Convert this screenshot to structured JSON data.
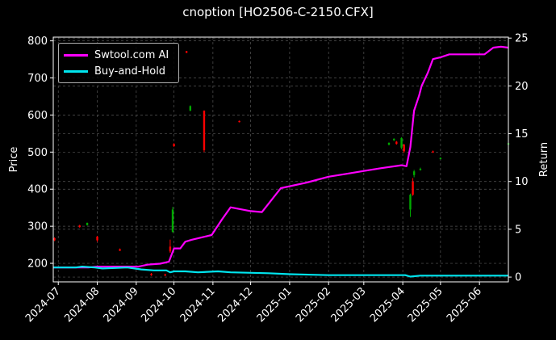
{
  "chart_data": {
    "type": "line",
    "title": "cnoption [HO2506-C-2150.CFX]",
    "ylabel": "Price",
    "y2label": "Return",
    "ylim": [
      150,
      810
    ],
    "y2lim": [
      -0.5,
      25.1
    ],
    "xlim": [
      "2024-06-27",
      "2025-06-24"
    ],
    "yticks": [
      200,
      300,
      400,
      500,
      600,
      700,
      800
    ],
    "y2ticks": [
      0,
      5,
      10,
      15,
      20,
      25
    ],
    "xticks": [
      "2024-07",
      "2024-08",
      "2024-09",
      "2024-10",
      "2024-11",
      "2024-12",
      "2025-01",
      "2025-02",
      "2025-03",
      "2025-04",
      "2025-05",
      "2025-06"
    ],
    "grid": true,
    "legend_position": "upper-left",
    "colors": {
      "up": "#00aa00",
      "down": "#ff0000",
      "ai": "#ff00ff",
      "bh": "#00e5ee",
      "grid": "#555555"
    },
    "series": [
      {
        "name": "Swtool.com AI",
        "axis": "right",
        "points": [
          [
            "2024-06-27",
            1.0
          ],
          [
            "2024-07-15",
            1.0
          ],
          [
            "2024-07-25",
            1.0
          ],
          [
            "2024-08-01",
            1.1
          ],
          [
            "2024-08-15",
            1.1
          ],
          [
            "2024-09-03",
            1.1
          ],
          [
            "2024-09-10",
            1.3
          ],
          [
            "2024-09-20",
            1.4
          ],
          [
            "2024-09-27",
            1.6
          ],
          [
            "2024-10-01",
            3.0
          ],
          [
            "2024-10-06",
            3.0
          ],
          [
            "2024-10-10",
            3.7
          ],
          [
            "2024-10-15",
            3.9
          ],
          [
            "2024-10-31",
            4.4
          ],
          [
            "2024-11-08",
            6.0
          ],
          [
            "2024-11-15",
            7.3
          ],
          [
            "2024-12-01",
            6.9
          ],
          [
            "2024-12-10",
            6.8
          ],
          [
            "2024-12-25",
            9.3
          ],
          [
            "2025-01-15",
            9.9
          ],
          [
            "2025-02-01",
            10.5
          ],
          [
            "2025-02-15",
            10.8
          ],
          [
            "2025-03-01",
            11.1
          ],
          [
            "2025-03-15",
            11.4
          ],
          [
            "2025-03-31",
            11.7
          ],
          [
            "2025-04-04",
            11.6
          ],
          [
            "2025-04-07",
            13.6
          ],
          [
            "2025-04-10",
            17.4
          ],
          [
            "2025-04-14",
            19.0
          ],
          [
            "2025-04-16",
            20.0
          ],
          [
            "2025-04-21",
            21.4
          ],
          [
            "2025-04-25",
            22.8
          ],
          [
            "2025-05-01",
            23.0
          ],
          [
            "2025-05-08",
            23.3
          ],
          [
            "2025-06-05",
            23.3
          ],
          [
            "2025-06-12",
            24.0
          ],
          [
            "2025-06-18",
            24.1
          ],
          [
            "2025-06-24",
            24.0
          ]
        ]
      },
      {
        "name": "Buy-and-Hold",
        "axis": "right",
        "points": [
          [
            "2024-06-27",
            1.0
          ],
          [
            "2024-07-15",
            1.0
          ],
          [
            "2024-07-20",
            1.1
          ],
          [
            "2024-07-30",
            1.0
          ],
          [
            "2024-08-05",
            0.9
          ],
          [
            "2024-08-25",
            1.0
          ],
          [
            "2024-09-05",
            0.8
          ],
          [
            "2024-09-15",
            0.7
          ],
          [
            "2024-09-25",
            0.7
          ],
          [
            "2024-09-28",
            0.5
          ],
          [
            "2024-10-01",
            0.6
          ],
          [
            "2024-10-10",
            0.6
          ],
          [
            "2024-10-20",
            0.5
          ],
          [
            "2024-11-05",
            0.6
          ],
          [
            "2024-11-15",
            0.5
          ],
          [
            "2024-12-15",
            0.4
          ],
          [
            "2025-01-01",
            0.3
          ],
          [
            "2025-02-01",
            0.2
          ],
          [
            "2025-03-01",
            0.2
          ],
          [
            "2025-04-03",
            0.2
          ],
          [
            "2025-04-07",
            0.05
          ],
          [
            "2025-04-15",
            0.15
          ],
          [
            "2025-06-24",
            0.15
          ]
        ]
      }
    ],
    "candles": [
      {
        "date": "2024-06-28",
        "open": 268,
        "close": 262,
        "high": 270,
        "low": 260
      },
      {
        "date": "2024-07-18",
        "open": 302,
        "close": 298,
        "high": 304,
        "low": 296
      },
      {
        "date": "2024-07-24",
        "open": 303,
        "close": 309,
        "high": 310,
        "low": 302
      },
      {
        "date": "2024-08-01",
        "open": 272,
        "close": 262,
        "high": 274,
        "low": 258
      },
      {
        "date": "2024-08-19",
        "open": 238,
        "close": 234,
        "high": 240,
        "low": 233
      },
      {
        "date": "2024-09-13",
        "open": 172,
        "close": 168,
        "high": 174,
        "low": 166
      },
      {
        "date": "2024-09-24",
        "open": 170,
        "close": 167,
        "high": 172,
        "low": 166
      },
      {
        "date": "2024-09-28",
        "open": 245,
        "close": 232,
        "high": 264,
        "low": 228
      },
      {
        "date": "2024-09-30",
        "open": 285,
        "close": 345,
        "high": 352,
        "low": 282
      },
      {
        "date": "2024-10-01",
        "open": 522,
        "close": 516,
        "high": 524,
        "low": 514
      },
      {
        "date": "2024-10-11",
        "open": 772,
        "close": 768,
        "high": 773,
        "low": 767
      },
      {
        "date": "2024-10-14",
        "open": 612,
        "close": 624,
        "high": 626,
        "low": 610
      },
      {
        "date": "2024-10-25",
        "open": 612,
        "close": 505,
        "high": 612,
        "low": 500
      },
      {
        "date": "2024-11-22",
        "open": 584,
        "close": 581,
        "high": 585,
        "low": 580
      },
      {
        "date": "2025-03-21",
        "open": 520,
        "close": 525,
        "high": 526,
        "low": 518
      },
      {
        "date": "2025-03-25",
        "open": 532,
        "close": 536,
        "high": 537,
        "low": 530
      },
      {
        "date": "2025-03-27",
        "open": 528,
        "close": 522,
        "high": 530,
        "low": 520
      },
      {
        "date": "2025-03-31",
        "open": 512,
        "close": 538,
        "high": 540,
        "low": 508
      },
      {
        "date": "2025-04-02",
        "open": 520,
        "close": 502,
        "high": 522,
        "low": 498
      },
      {
        "date": "2025-04-07",
        "open": 345,
        "close": 385,
        "high": 388,
        "low": 325
      },
      {
        "date": "2025-04-09",
        "open": 420,
        "close": 385,
        "high": 430,
        "low": 382
      },
      {
        "date": "2025-04-10",
        "open": 438,
        "close": 448,
        "high": 452,
        "low": 432
      },
      {
        "date": "2025-04-15",
        "open": 452,
        "close": 455,
        "high": 458,
        "low": 450
      },
      {
        "date": "2025-04-25",
        "open": 502,
        "close": 499,
        "high": 504,
        "low": 498
      },
      {
        "date": "2025-05-01",
        "open": 482,
        "close": 484,
        "high": 486,
        "low": 481
      },
      {
        "date": "2025-06-24",
        "open": 520,
        "close": 524,
        "high": 526,
        "low": 519
      }
    ]
  }
}
